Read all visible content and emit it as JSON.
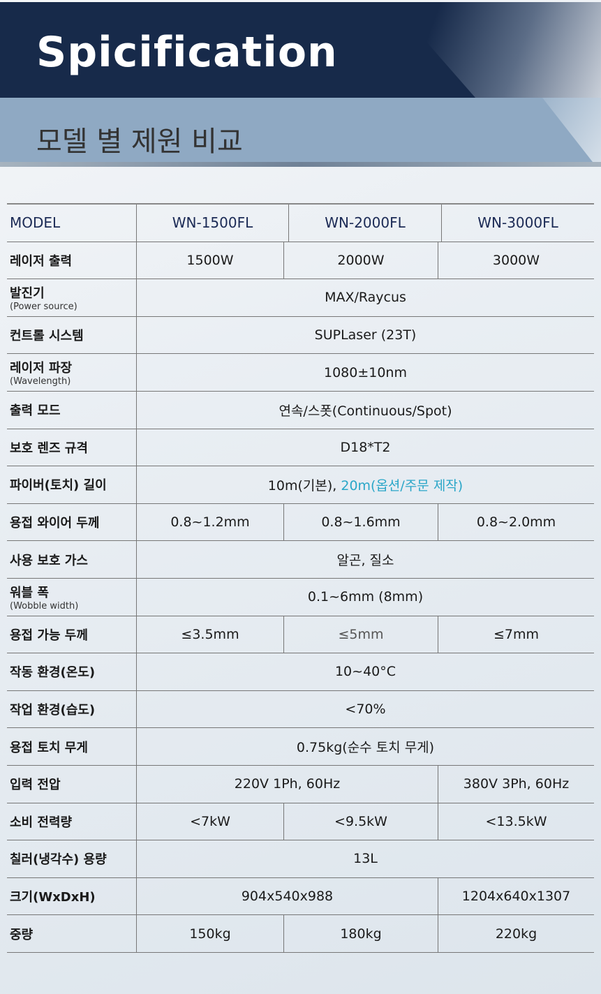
{
  "header": {
    "title": "Spicification",
    "subtitle": "모델 별 제원 비교"
  },
  "colors": {
    "navy": "#172a4a",
    "band": "#8fa9c3",
    "highlight": "#2aa6c8"
  },
  "table": {
    "header": [
      "MODEL",
      "WN-1500FL",
      "WN-2000FL",
      "WN-3000FL"
    ],
    "rows": [
      {
        "label": "레이저 출력",
        "cells": [
          "1500W",
          "2000W",
          "3000W"
        ]
      },
      {
        "label": "발진기",
        "sub": "(Power source)",
        "cells": [
          "MAX/Raycus"
        ]
      },
      {
        "label": "컨트롤 시스템",
        "cells": [
          "SUPLaser (23T)"
        ]
      },
      {
        "label": "레이저 파장",
        "sub": "(Wavelength)",
        "cells": [
          "1080±10nm"
        ]
      },
      {
        "label": "출력 모드",
        "cells": [
          "연속/스폿(Continuous/Spot)"
        ]
      },
      {
        "label": "보호 렌즈 규격",
        "cells": [
          "D18*T2"
        ]
      },
      {
        "label": "파이버(토치) 길이",
        "cells": [
          "10m(기본), "
        ],
        "highlight": "20m(옵션/주문 제작)"
      },
      {
        "label": "용접 와이어 두께",
        "cells": [
          "0.8~1.2mm",
          "0.8~1.6mm",
          "0.8~2.0mm"
        ]
      },
      {
        "label": "사용 보호 가스",
        "cells": [
          "알곤, 질소"
        ]
      },
      {
        "label": "워블 폭",
        "sub": "(Wobble width)",
        "cells": [
          "0.1~6mm (8mm)"
        ]
      },
      {
        "label": "용접 가능 두께",
        "cells": [
          "≤3.5mm",
          "≤5mm",
          "≤7mm"
        ]
      },
      {
        "label": "작동 환경(온도)",
        "cells": [
          "10~40°C"
        ]
      },
      {
        "label": "작업 환경(습도)",
        "cells": [
          "<70%"
        ]
      },
      {
        "label": "용접 토치 무게",
        "cells": [
          "0.75kg(순수 토치 무게)"
        ]
      },
      {
        "label": "입력 전압",
        "cells": [
          "220V 1Ph, 60Hz",
          "380V 3Ph, 60Hz"
        ]
      },
      {
        "label": "소비 전력량",
        "cells": [
          "<7kW",
          "<9.5kW",
          "<13.5kW"
        ]
      },
      {
        "label": "칠러(냉각수) 용량",
        "cells": [
          "13L"
        ]
      },
      {
        "label": "크기(WxDxH)",
        "cells": [
          "904x540x988",
          "1204x640x1307"
        ]
      },
      {
        "label": "중량",
        "cells": [
          "150kg",
          "180kg",
          "220kg"
        ]
      }
    ]
  }
}
